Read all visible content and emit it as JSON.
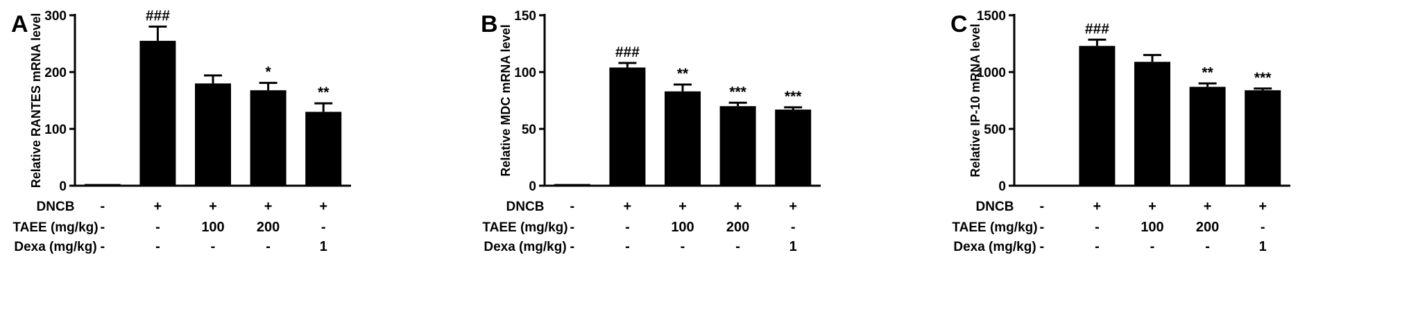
{
  "figure": {
    "background_color": "#ffffff",
    "text_color": "#000000",
    "bar_color": "#000000"
  },
  "chart_data": [
    {
      "type": "bar",
      "panel": "A",
      "title": "",
      "xlabel": "",
      "ylabel": "Relative RANTES mRNA level",
      "ylim": [
        0,
        300
      ],
      "yticks": [
        0,
        100,
        200,
        300
      ],
      "values": [
        3,
        255,
        180,
        168,
        130
      ],
      "errors": [
        0,
        25,
        14,
        13,
        15
      ],
      "annotations": [
        "",
        "###",
        "",
        "*",
        "**"
      ],
      "bar_color": "#000000",
      "legend": "none",
      "grid": false
    },
    {
      "type": "bar",
      "panel": "B",
      "title": "",
      "xlabel": "",
      "ylabel": "Relative MDC mRNA level",
      "ylim": [
        0,
        150
      ],
      "yticks": [
        0,
        50,
        100,
        150
      ],
      "values": [
        1.5,
        104,
        83,
        70,
        67
      ],
      "errors": [
        0,
        4,
        6,
        3,
        2
      ],
      "annotations": [
        "",
        "###",
        "**",
        "***",
        "***"
      ],
      "bar_color": "#000000",
      "legend": "none",
      "grid": false
    },
    {
      "type": "bar",
      "panel": "C",
      "title": "",
      "xlabel": "",
      "ylabel": "Relative IP-10 mRNA level",
      "ylim": [
        0,
        1500
      ],
      "yticks": [
        0,
        500,
        1000,
        1500
      ],
      "values": [
        8,
        1230,
        1090,
        870,
        840
      ],
      "errors": [
        0,
        55,
        60,
        30,
        15
      ],
      "annotations": [
        "",
        "###",
        "",
        "**",
        "***"
      ],
      "bar_color": "#000000",
      "legend": "none",
      "grid": false
    }
  ],
  "treatment_table": {
    "rows": [
      {
        "label": "DNCB",
        "values": [
          "-",
          "+",
          "+",
          "+",
          "+"
        ]
      },
      {
        "label": "TAEE (mg/kg)",
        "values": [
          "-",
          "-",
          "100",
          "200",
          "-"
        ]
      },
      {
        "label": "Dexa (mg/kg)",
        "values": [
          "-",
          "-",
          "-",
          "-",
          "1"
        ]
      }
    ]
  }
}
